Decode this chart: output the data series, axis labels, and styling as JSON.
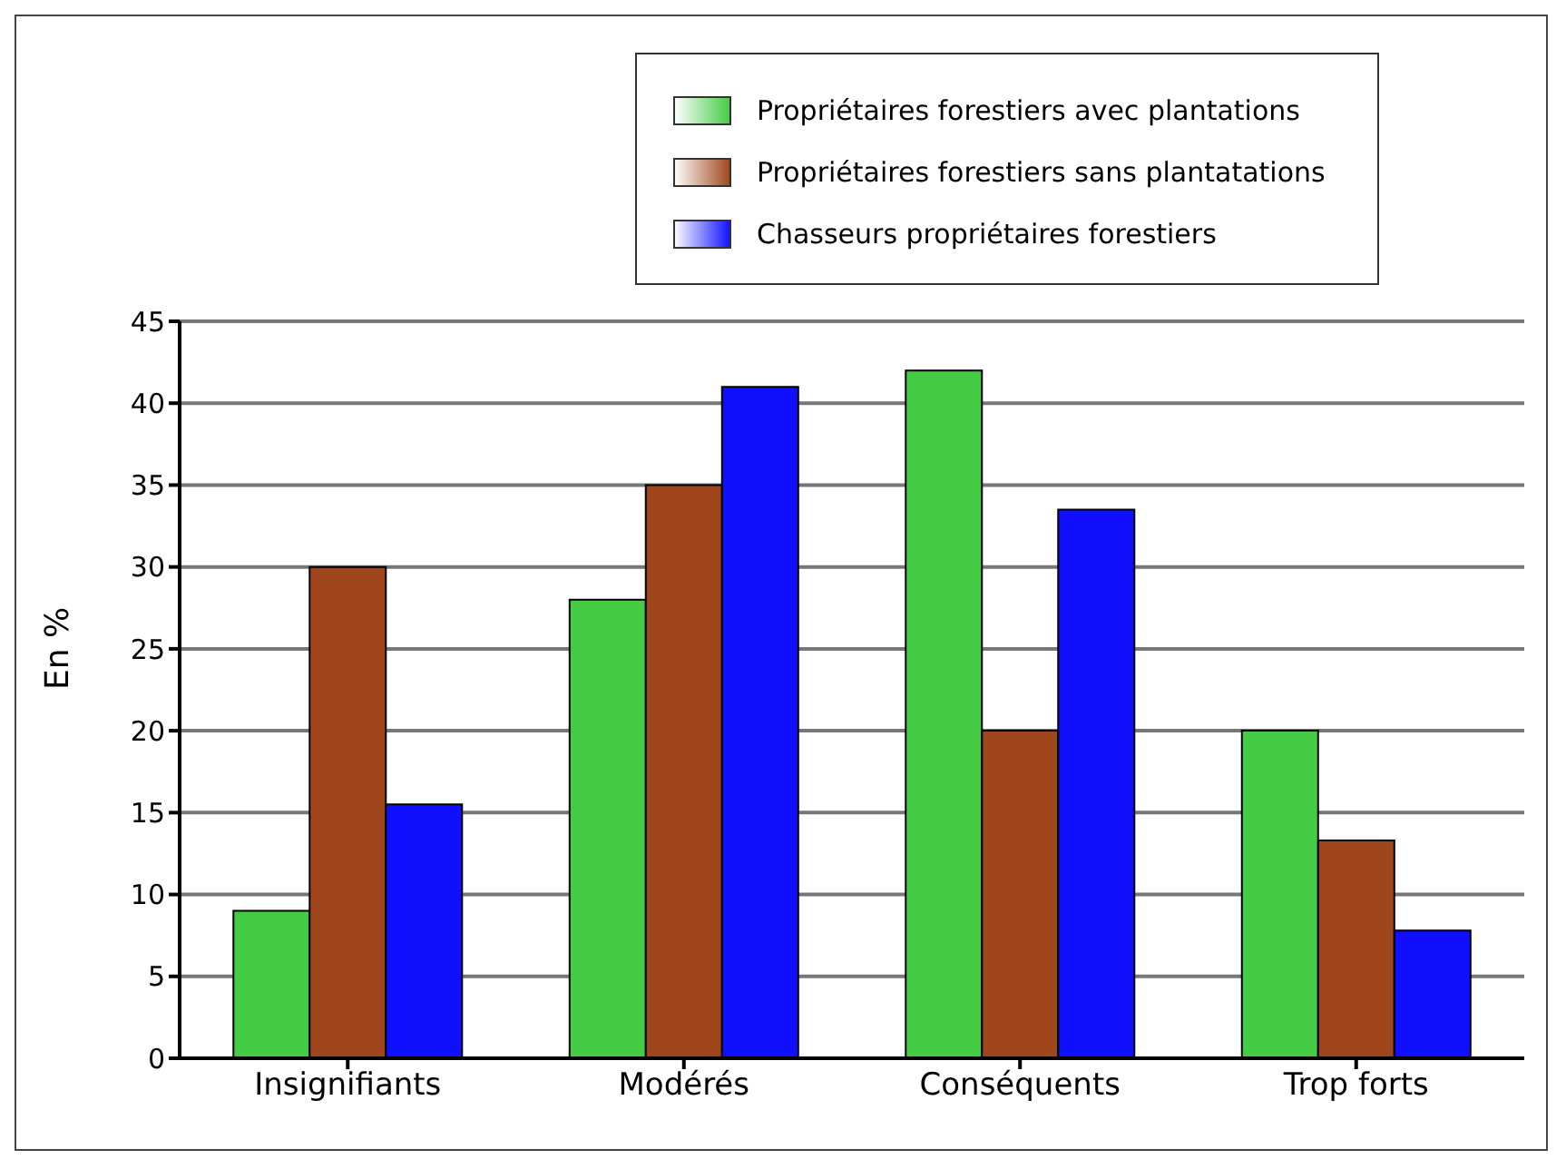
{
  "chart_data": {
    "type": "bar",
    "ylabel": "En %",
    "categories": [
      "Insignifiants",
      "Modérés",
      "Conséquents",
      "Trop forts"
    ],
    "series": [
      {
        "name": "Propriétaires forestiers avec plantations",
        "color": "#44cc44",
        "values": [
          9,
          28,
          42,
          20
        ]
      },
      {
        "name": "Propriétaires forestiers sans plantatations",
        "color": "#a0461c",
        "values": [
          30,
          35,
          20,
          13.3
        ]
      },
      {
        "name": "Chasseurs propriétaires forestiers",
        "color": "#1010ff",
        "values": [
          15.5,
          41,
          33.5,
          7.8
        ]
      }
    ],
    "ylim": [
      0,
      45
    ],
    "yticks": [
      0,
      5,
      10,
      15,
      20,
      25,
      30,
      35,
      40,
      45
    ],
    "grid": "y",
    "legend": "top right"
  }
}
